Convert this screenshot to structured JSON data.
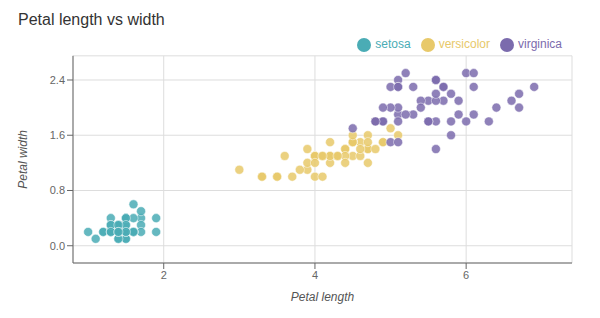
{
  "chart_data": {
    "type": "scatter",
    "title": "Petal length vs width",
    "xlabel": "Petal length",
    "ylabel": "Petal width",
    "grid": true,
    "legend": "upper right",
    "xlim": [
      0.8,
      7.4
    ],
    "ylim": [
      -0.25,
      2.75
    ],
    "xticks": [
      2,
      4,
      6
    ],
    "yticks": [
      {
        "value": 0.0,
        "label": "0.0"
      },
      0.8,
      1.6,
      2.4
    ],
    "series": [
      {
        "name": "setosa",
        "color": "#4aacb5",
        "x": [
          1.4,
          1.4,
          1.3,
          1.5,
          1.4,
          1.7,
          1.4,
          1.5,
          1.4,
          1.5,
          1.5,
          1.6,
          1.4,
          1.1,
          1.2,
          1.5,
          1.3,
          1.4,
          1.7,
          1.5,
          1.7,
          1.5,
          1.0,
          1.7,
          1.9,
          1.6,
          1.6,
          1.5,
          1.4,
          1.6,
          1.6,
          1.5,
          1.5,
          1.4,
          1.5,
          1.2,
          1.3,
          1.4,
          1.3,
          1.5,
          1.3,
          1.3,
          1.3,
          1.6,
          1.9,
          1.4,
          1.6,
          1.4,
          1.5,
          1.4
        ],
        "values": [
          0.2,
          0.2,
          0.2,
          0.2,
          0.2,
          0.4,
          0.3,
          0.2,
          0.2,
          0.1,
          0.2,
          0.2,
          0.1,
          0.1,
          0.2,
          0.4,
          0.4,
          0.3,
          0.3,
          0.3,
          0.2,
          0.4,
          0.2,
          0.5,
          0.2,
          0.2,
          0.4,
          0.2,
          0.2,
          0.2,
          0.2,
          0.4,
          0.1,
          0.2,
          0.2,
          0.2,
          0.2,
          0.1,
          0.2,
          0.3,
          0.3,
          0.3,
          0.2,
          0.6,
          0.4,
          0.3,
          0.2,
          0.2,
          0.2,
          0.2
        ]
      },
      {
        "name": "versicolor",
        "color": "#e8c96a",
        "x": [
          4.7,
          4.5,
          4.9,
          4.0,
          4.6,
          4.5,
          4.7,
          3.3,
          4.6,
          3.9,
          3.5,
          4.2,
          4.0,
          4.7,
          3.6,
          4.4,
          4.5,
          4.1,
          4.5,
          3.9,
          4.8,
          4.0,
          4.9,
          4.7,
          4.3,
          4.4,
          4.8,
          5.0,
          4.5,
          3.5,
          3.8,
          3.7,
          3.9,
          5.1,
          4.5,
          4.5,
          4.7,
          4.4,
          4.1,
          4.0,
          4.4,
          4.6,
          4.0,
          3.3,
          4.2,
          4.2,
          4.2,
          4.3,
          3.0,
          4.1
        ],
        "values": [
          1.4,
          1.5,
          1.5,
          1.3,
          1.5,
          1.3,
          1.6,
          1.0,
          1.3,
          1.4,
          1.0,
          1.5,
          1.0,
          1.4,
          1.3,
          1.4,
          1.5,
          1.0,
          1.5,
          1.1,
          1.8,
          1.3,
          1.5,
          1.2,
          1.3,
          1.4,
          1.4,
          1.7,
          1.5,
          1.0,
          1.1,
          1.0,
          1.2,
          1.6,
          1.5,
          1.6,
          1.5,
          1.3,
          1.3,
          1.3,
          1.2,
          1.4,
          1.2,
          1.0,
          1.3,
          1.2,
          1.3,
          1.3,
          1.1,
          1.3
        ]
      },
      {
        "name": "virginica",
        "color": "#7b6bad",
        "x": [
          6.0,
          5.1,
          5.9,
          5.6,
          5.8,
          6.6,
          4.5,
          6.3,
          5.8,
          6.1,
          5.1,
          5.3,
          5.5,
          5.0,
          5.1,
          5.3,
          5.5,
          6.7,
          6.9,
          5.0,
          5.7,
          4.9,
          6.7,
          4.9,
          5.7,
          6.0,
          4.8,
          4.9,
          5.6,
          5.8,
          6.1,
          6.4,
          5.6,
          5.1,
          5.6,
          6.1,
          5.6,
          5.5,
          4.8,
          5.4,
          5.6,
          5.1,
          5.9,
          5.7,
          5.2,
          5.0,
          5.2,
          5.4,
          5.1,
          5.1
        ],
        "values": [
          2.5,
          1.9,
          2.1,
          1.8,
          2.2,
          2.1,
          1.7,
          1.8,
          1.8,
          2.5,
          2.0,
          1.9,
          2.1,
          2.0,
          2.4,
          2.3,
          1.8,
          2.2,
          2.3,
          1.5,
          2.3,
          2.0,
          2.0,
          1.8,
          2.1,
          1.8,
          1.8,
          1.8,
          2.1,
          1.6,
          1.9,
          2.0,
          2.2,
          1.5,
          1.4,
          2.3,
          2.4,
          1.8,
          1.8,
          2.1,
          2.4,
          2.3,
          1.9,
          2.3,
          2.5,
          2.3,
          1.9,
          2.0,
          2.3,
          1.8
        ]
      }
    ]
  }
}
